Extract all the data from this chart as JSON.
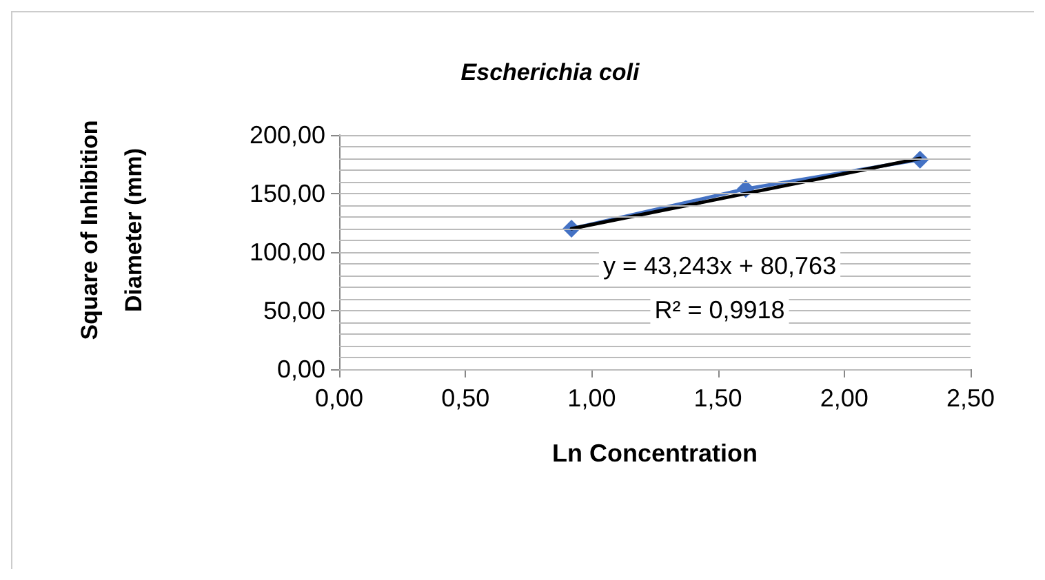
{
  "chart_data": {
    "type": "line",
    "title": "Escherichia coli",
    "xlabel": "Ln Concentration",
    "ylabel": "Square of Inhibition Diameter (mm)",
    "x": [
      0.92,
      1.61,
      2.3
    ],
    "series": [
      {
        "color": "#4472c4",
        "marker": "diamond",
        "values": [
          120,
          154,
          179
        ]
      },
      {
        "type": "line",
        "color": "#000000",
        "marker": "none",
        "x": [
          0.92,
          2.3
        ],
        "values": [
          120,
          180
        ]
      }
    ],
    "xlim": [
      0,
      2.5
    ],
    "xticks": [
      {
        "value": 0,
        "label": "0,00"
      },
      {
        "value": 0.5,
        "label": "0,50"
      },
      {
        "value": 1,
        "label": "1,00"
      },
      {
        "value": 1.5,
        "label": "1,50"
      },
      {
        "value": 2,
        "label": "2,00"
      },
      {
        "value": 2.5,
        "label": "2,50"
      }
    ],
    "ylim": [
      0,
      200
    ],
    "yticks": [
      {
        "value": 0,
        "label": "0,00"
      },
      {
        "value": 10,
        "label": null
      },
      {
        "value": 20,
        "label": null
      },
      {
        "value": 30,
        "label": null
      },
      {
        "value": 40,
        "label": null
      },
      {
        "value": 50,
        "label": "50,00"
      },
      {
        "value": 60,
        "label": null
      },
      {
        "value": 70,
        "label": null
      },
      {
        "value": 80,
        "label": null
      },
      {
        "value": 90,
        "label": null
      },
      {
        "value": 100,
        "label": "100,00"
      },
      {
        "value": 110,
        "label": null
      },
      {
        "value": 120,
        "label": null
      },
      {
        "value": 130,
        "label": null
      },
      {
        "value": 140,
        "label": null
      },
      {
        "value": 150,
        "label": "150,00"
      },
      {
        "value": 160,
        "label": null
      },
      {
        "value": 170,
        "label": null
      },
      {
        "value": 180,
        "label": null
      },
      {
        "value": 190,
        "label": null
      },
      {
        "value": 200,
        "label": "200,00"
      }
    ],
    "grid": "y",
    "annotations": [
      "y = 43,243x + 80,763",
      "R² = 0,9918"
    ]
  }
}
